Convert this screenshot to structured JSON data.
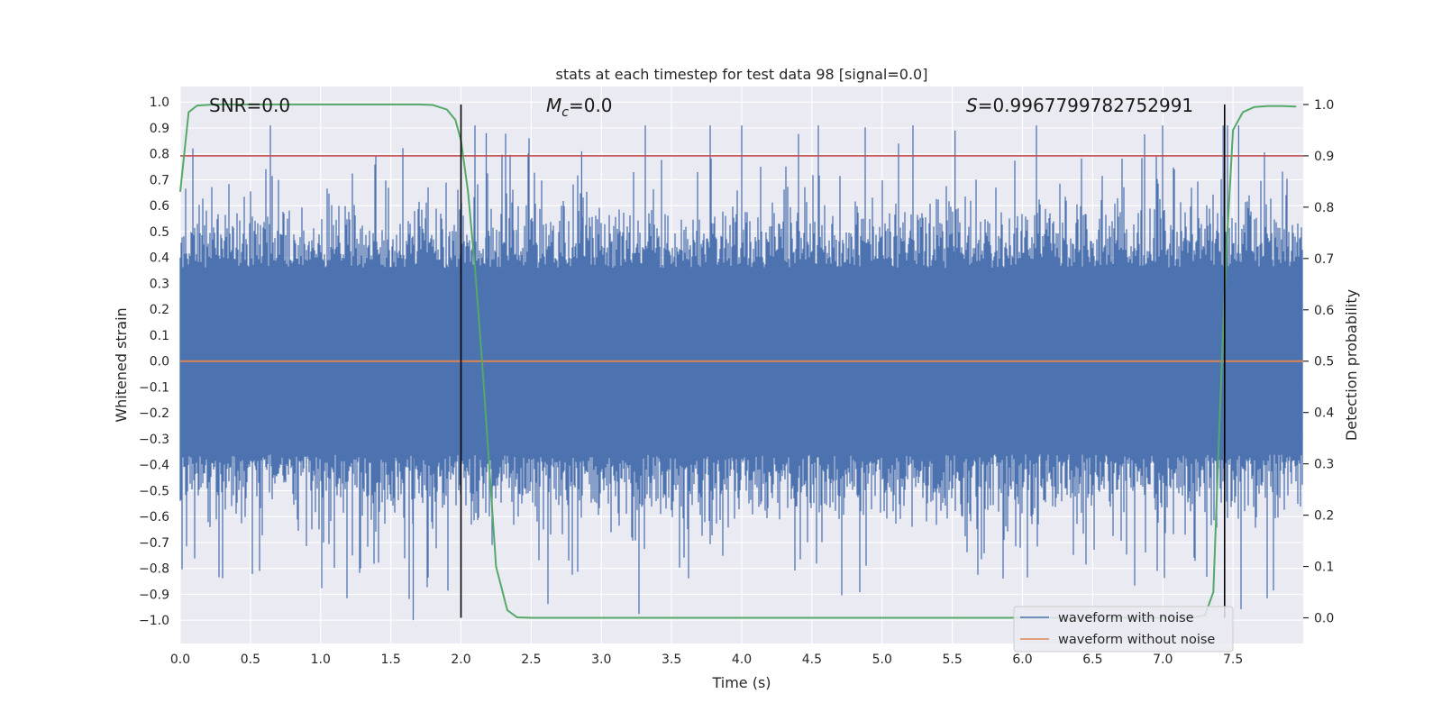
{
  "chart_data": {
    "type": "line",
    "title": "stats at each timestep for test data 98 [signal=0.0]",
    "xlabel": "Time (s)",
    "ylabel": "Whitened strain",
    "ylabel_right": "Detection probability",
    "xlim": [
      0.0,
      8.0
    ],
    "ylim": [
      -1.09,
      1.06
    ],
    "ylim_right": [
      -0.05,
      1.035
    ],
    "xticks": [
      0.0,
      0.5,
      1.0,
      1.5,
      2.0,
      2.5,
      3.0,
      3.5,
      4.0,
      4.5,
      5.0,
      5.5,
      6.0,
      6.5,
      7.0,
      7.5
    ],
    "xtick_labels": [
      "0.0",
      "0.5",
      "1.0",
      "1.5",
      "2.0",
      "2.5",
      "3.0",
      "3.5",
      "4.0",
      "4.5",
      "5.0",
      "5.5",
      "6.0",
      "6.5",
      "7.0",
      "7.5"
    ],
    "yticks": [
      1.0,
      0.9,
      0.8,
      0.7,
      0.6,
      0.5,
      0.4,
      0.3,
      0.2,
      0.1,
      0.0,
      -0.1,
      -0.2,
      -0.3,
      -0.4,
      -0.5,
      -0.6,
      -0.7,
      -0.8,
      -0.9,
      -1.0
    ],
    "ytick_labels": [
      "1.0",
      "0.9",
      "0.8",
      "0.7",
      "0.6",
      "0.5",
      "0.4",
      "0.3",
      "0.2",
      "0.1",
      "0.0",
      "−0.1",
      "−0.2",
      "−0.3",
      "−0.4",
      "−0.5",
      "−0.6",
      "−0.7",
      "−0.8",
      "−0.9",
      "−1.0"
    ],
    "yticks_right": [
      1.0,
      0.9,
      0.8,
      0.7,
      0.6,
      0.5,
      0.4,
      0.3,
      0.2,
      0.1,
      0.0
    ],
    "ytick_labels_right": [
      "1.0",
      "0.9",
      "0.8",
      "0.7",
      "0.6",
      "0.5",
      "0.4",
      "0.3",
      "0.2",
      "0.1",
      "0.0"
    ],
    "annotations": {
      "snr": "SNR=0.0",
      "mc_symbol": "M",
      "mc_sub": "c",
      "mc_value": "=0.0",
      "s_symbol": "S",
      "s_value": "=0.9967799782752991"
    },
    "noise_envelope": {
      "description_values": "approximate waveform-with-noise amplitude range",
      "typical_max": 0.4,
      "typical_min": -0.4,
      "peak_max": 0.91,
      "peak_min": -1.0
    },
    "series": [
      {
        "name": "waveform with noise",
        "color": "#4c72b0",
        "type": "noise"
      },
      {
        "name": "waveform without noise",
        "color": "#dd8452",
        "value": 0.0
      }
    ],
    "detection_probability": {
      "color": "#55a868",
      "x": [
        0.0,
        0.06,
        0.12,
        0.25,
        0.5,
        1.0,
        1.5,
        1.7,
        1.8,
        1.9,
        1.96,
        2.0,
        2.05,
        2.1,
        2.15,
        2.2,
        2.25,
        2.33,
        2.4,
        2.5,
        3.0,
        4.0,
        5.0,
        6.0,
        7.0,
        7.2,
        7.3,
        7.36,
        7.4,
        7.45,
        7.5,
        7.57,
        7.65,
        7.75,
        7.85,
        7.95
      ],
      "y": [
        0.83,
        0.985,
        0.998,
        1.0,
        1.0,
        1.0,
        1.0,
        1.0,
        0.999,
        0.99,
        0.97,
        0.93,
        0.83,
        0.68,
        0.5,
        0.3,
        0.1,
        0.015,
        0.001,
        0.0,
        0.0,
        0.0,
        0.0,
        0.0,
        0.0,
        0.0,
        0.005,
        0.05,
        0.35,
        0.7,
        0.95,
        0.985,
        0.995,
        0.997,
        0.997,
        0.996
      ]
    },
    "threshold": {
      "value": 0.9,
      "axis": "right",
      "color": "#c44e52"
    },
    "vlines": [
      2.0,
      7.44
    ],
    "vline_color": "#000000",
    "legend": {
      "location": "lower-right",
      "entries": [
        "waveform with noise",
        "waveform without noise"
      ]
    },
    "background": "#eaeaf2",
    "grid": true
  }
}
